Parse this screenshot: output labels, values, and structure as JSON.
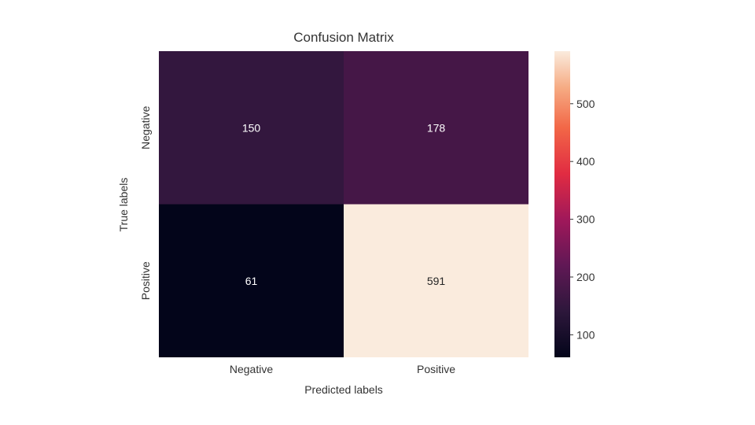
{
  "chart_data": {
    "type": "heatmap",
    "title": "Confusion Matrix",
    "xlabel": "Predicted labels",
    "ylabel": "True labels",
    "x_categories": [
      "Negative",
      "Positive"
    ],
    "y_categories": [
      "Negative",
      "Positive"
    ],
    "values": [
      [
        150,
        178
      ],
      [
        61,
        591
      ]
    ],
    "cell_labels": [
      [
        "150",
        "178"
      ],
      [
        "61",
        "591"
      ]
    ],
    "colormap": "rocket",
    "colorbar": {
      "range": [
        61,
        591
      ],
      "ticks": [
        100,
        200,
        300,
        400,
        500
      ],
      "tick_labels": [
        "100",
        "200",
        "300",
        "400",
        "500"
      ]
    }
  }
}
